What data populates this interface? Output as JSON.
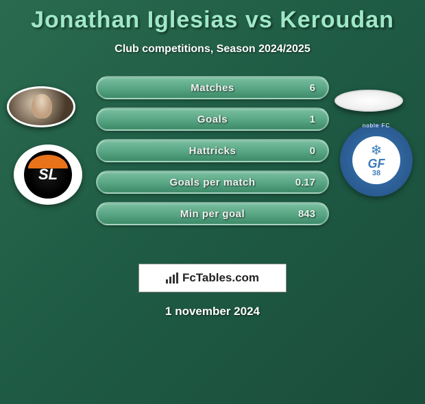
{
  "title": {
    "player1": "Jonathan Iglesias",
    "vs": "vs",
    "player2": "Keroudan"
  },
  "subtitle": "Club competitions, Season 2024/2025",
  "stats": [
    {
      "label": "Matches",
      "value": "6"
    },
    {
      "label": "Goals",
      "value": "1"
    },
    {
      "label": "Hattricks",
      "value": "0"
    },
    {
      "label": "Goals per match",
      "value": "0.17"
    },
    {
      "label": "Min per goal",
      "value": "843"
    }
  ],
  "club1": {
    "name": "Stade Lavallois",
    "initials": "SL"
  },
  "club2": {
    "name": "Grenoble FC",
    "initials": "GF",
    "number": "38",
    "arc": "noble FC"
  },
  "brand": "FcTables.com",
  "date": "1 november 2024",
  "colors": {
    "bg_start": "#2a6b4f",
    "bg_end": "#1a4d3a",
    "accent": "#9fe8c8",
    "bar_top": "#7bbfa0",
    "bar_bottom": "#3d8a68",
    "club1_accent": "#e8731a",
    "club2_accent": "#3b7bb8"
  }
}
